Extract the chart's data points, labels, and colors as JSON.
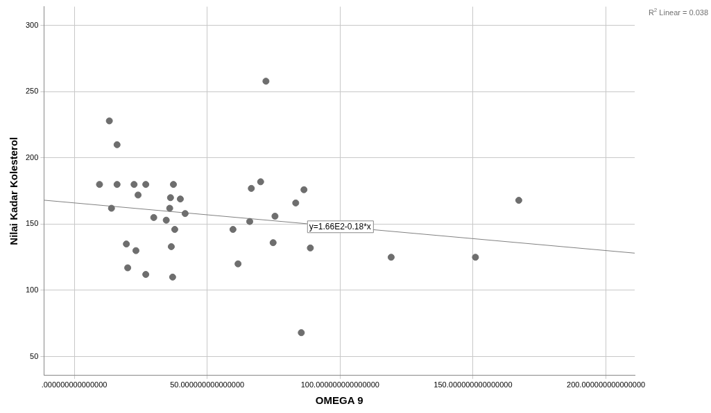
{
  "chart_data": {
    "type": "scatter",
    "xlabel": "OMEGA 9",
    "ylabel": "Nilai Kadar Kolesterol",
    "xlim": [
      -11.4,
      210.8
    ],
    "ylim": [
      35.7,
      314.3
    ],
    "xticks": [
      {
        "value": 0,
        "label": ".000000000000000"
      },
      {
        "value": 50,
        "label": "50.000000000000000"
      },
      {
        "value": 100,
        "label": "100.000000000000000"
      },
      {
        "value": 150,
        "label": "150.000000000000000"
      },
      {
        "value": 200,
        "label": "200.000000000000000"
      }
    ],
    "yticks": [
      50,
      100,
      150,
      200,
      250,
      300
    ],
    "grid": true,
    "marker": "circle",
    "series": [
      {
        "color": "#6e6e6e",
        "x": [
          9.5,
          13.2,
          14.0,
          16.1,
          16.1,
          19.6,
          20.1,
          22.5,
          23.2,
          24.0,
          26.9,
          26.9,
          29.9,
          34.6,
          35.9,
          36.2,
          36.5,
          37.0,
          37.3,
          37.8,
          39.9,
          41.7,
          59.7,
          61.6,
          66.0,
          66.6,
          70.1,
          72.1,
          74.8,
          75.5,
          83.3,
          85.4,
          86.4,
          88.8,
          119.2,
          150.9,
          167.2
        ],
        "values": [
          180,
          228,
          162,
          210,
          180,
          135,
          117,
          180,
          130,
          172,
          180,
          112,
          155,
          153,
          162,
          170,
          133,
          110,
          180,
          146,
          169,
          158,
          146,
          120,
          152,
          177,
          182,
          258,
          136,
          156,
          166,
          68,
          176,
          132,
          125,
          125,
          168
        ]
      },
      {
        "type": "line",
        "color": "#808080",
        "marker": "none",
        "x": [
          -11.4,
          210.8
        ],
        "values": [
          168.1,
          128.1
        ]
      }
    ],
    "annotations": [
      {
        "text": "y=1.66E2-0.18*x",
        "x": 100,
        "y": 148
      },
      "R$^{2}$ Linear = 0.038"
    ]
  }
}
